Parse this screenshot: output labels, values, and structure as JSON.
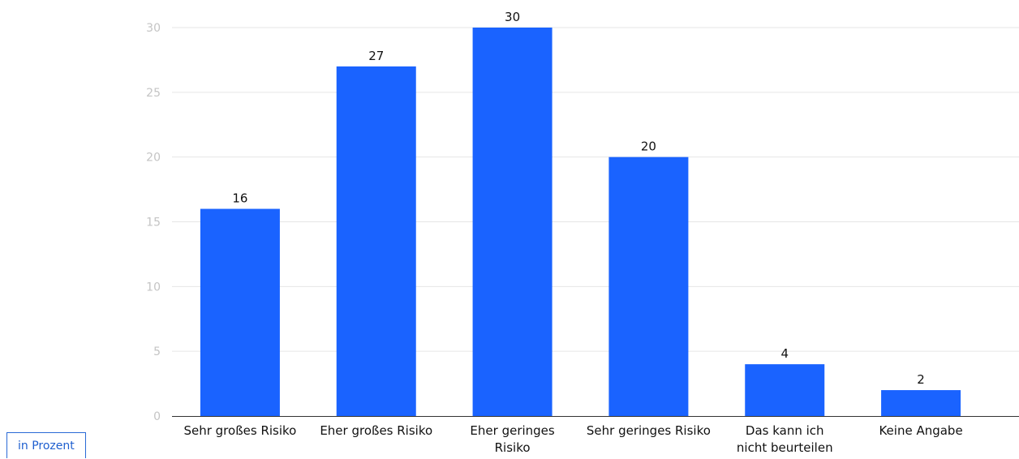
{
  "chart_data": {
    "type": "bar",
    "categories": [
      [
        "Sehr großes Risiko"
      ],
      [
        "Eher großes Risiko"
      ],
      [
        "Eher geringes",
        "Risiko"
      ],
      [
        "Sehr geringes Risiko"
      ],
      [
        "Das kann ich",
        "nicht beurteilen"
      ],
      [
        "Keine Angabe"
      ]
    ],
    "values": [
      16,
      27,
      30,
      20,
      4,
      2
    ],
    "value_labels": [
      "16",
      "27",
      "30",
      "20",
      "4",
      "2"
    ],
    "y_ticks": [
      0,
      5,
      10,
      15,
      20,
      25,
      30
    ],
    "ylim": [
      0,
      30
    ],
    "grid": true,
    "bar_color": "#1a63ff",
    "unit_label": "in Prozent"
  }
}
